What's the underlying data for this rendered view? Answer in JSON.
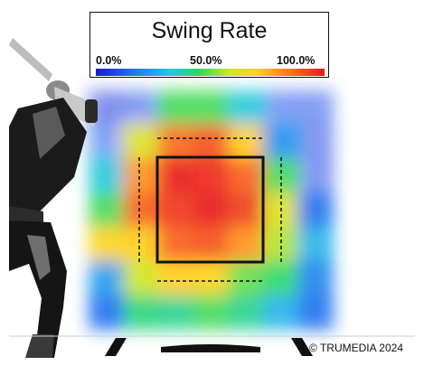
{
  "chart_data": {
    "type": "heatmap",
    "title": "Swing Rate",
    "colorbar": {
      "ticks": [
        "0.0%",
        "50.0%",
        "100.0%"
      ],
      "min": 0,
      "max": 100,
      "colors": [
        "#1a1ad8",
        "#1e6cf0",
        "#22c8e8",
        "#2ad860",
        "#c8e820",
        "#ffd21a",
        "#ff7a1a",
        "#e81818"
      ]
    },
    "grid_rows": 7,
    "grid_cols": 7,
    "values": [
      [
        5,
        10,
        45,
        45,
        30,
        10,
        10
      ],
      [
        12,
        62,
        88,
        92,
        72,
        20,
        8
      ],
      [
        30,
        82,
        100,
        98,
        90,
        45,
        8
      ],
      [
        45,
        90,
        96,
        100,
        95,
        62,
        15
      ],
      [
        70,
        72,
        90,
        92,
        82,
        55,
        25
      ],
      [
        22,
        58,
        72,
        70,
        48,
        42,
        18
      ],
      [
        15,
        40,
        38,
        45,
        38,
        25,
        15
      ]
    ]
  },
  "copyright": "© TRUMEDIA 2024"
}
